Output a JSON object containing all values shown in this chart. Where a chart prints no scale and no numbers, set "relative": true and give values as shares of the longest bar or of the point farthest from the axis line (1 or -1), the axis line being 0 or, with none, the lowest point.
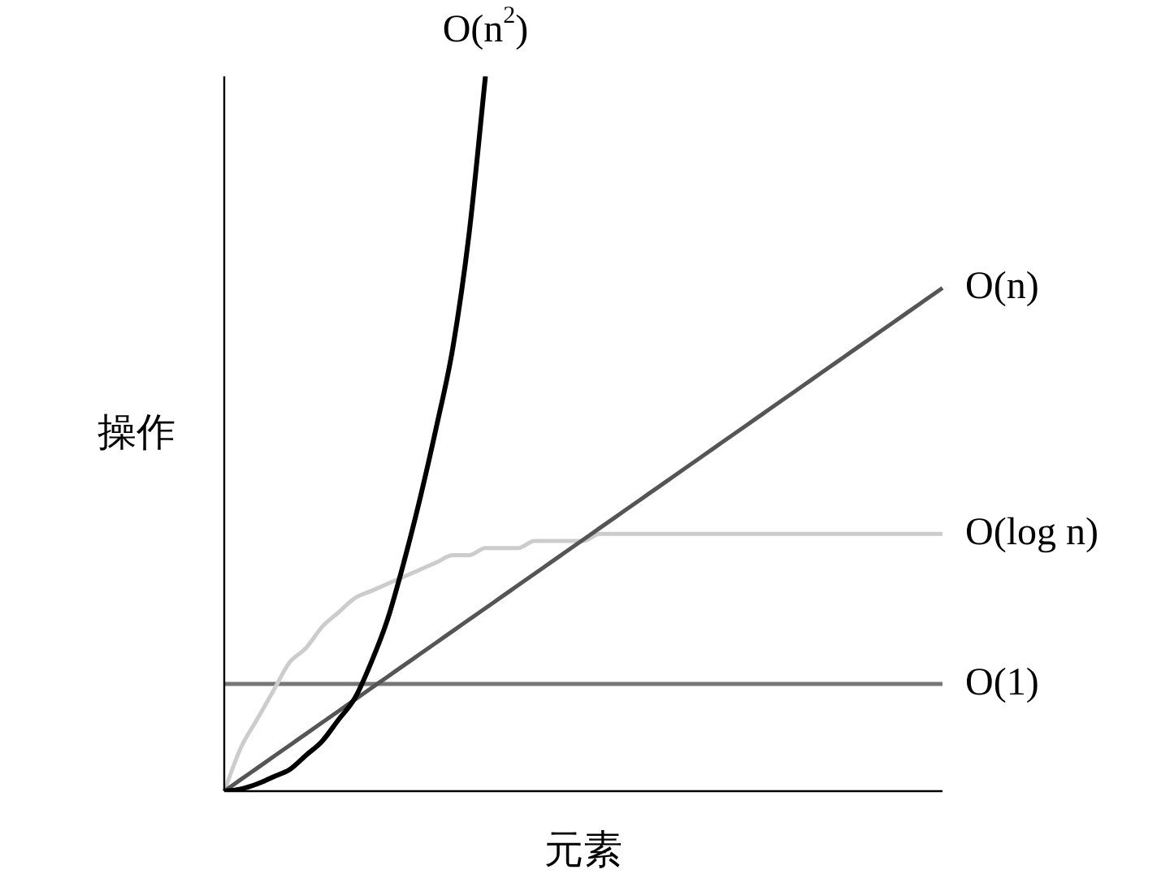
{
  "chart_data": {
    "type": "line",
    "relative": true,
    "xlabel": "元素",
    "ylabel": "操作",
    "legend": false,
    "grid": false,
    "marker": "none",
    "line_style": "solid",
    "categories": [
      null,
      null,
      null,
      null,
      null,
      null,
      null,
      null,
      null,
      null,
      null,
      null,
      null,
      null,
      null,
      null,
      null,
      null,
      null,
      null,
      null,
      null,
      null,
      null,
      null,
      null,
      null,
      null,
      null,
      null,
      null,
      null,
      null,
      null,
      null,
      null,
      null,
      null,
      null,
      null,
      null,
      null,
      null,
      null,
      null
    ],
    "series": [
      {
        "name": "O(n$^{2}$)",
        "color": "#000000",
        "values": [
          0,
          0.003,
          0.01,
          0.02,
          0.03,
          0.05,
          0.07,
          0.1,
          0.13,
          0.18,
          0.24,
          0.32,
          0.41,
          0.51,
          0.62,
          0.78,
          1,
          null,
          null,
          null,
          null,
          null,
          null,
          null,
          null,
          null,
          null,
          null,
          null,
          null,
          null,
          null,
          null,
          null,
          null,
          null,
          null,
          null,
          null,
          null,
          null,
          null,
          null,
          null,
          null
        ]
      },
      {
        "name": "O(n)",
        "color": "#555555",
        "values": [
          0,
          0.016,
          0.032,
          0.048,
          0.064,
          0.08,
          0.096,
          0.112,
          0.128,
          0.144,
          0.16,
          0.176,
          0.192,
          0.208,
          0.224,
          0.24,
          0.256,
          0.272,
          0.288,
          0.304,
          0.32,
          0.336,
          0.352,
          0.368,
          0.384,
          0.4,
          0.416,
          0.432,
          0.448,
          0.464,
          0.48,
          0.496,
          0.512,
          0.528,
          0.544,
          0.56,
          0.576,
          0.592,
          0.608,
          0.624,
          0.64,
          0.656,
          0.672,
          0.688,
          0.704
        ]
      },
      {
        "name": "O(log n)",
        "color": "#cccccc",
        "values": [
          0,
          0.06,
          0.1,
          0.14,
          0.18,
          0.2,
          0.23,
          0.25,
          0.27,
          0.28,
          0.29,
          0.3,
          0.31,
          0.32,
          0.33,
          0.33,
          0.34,
          0.34,
          0.34,
          0.35,
          0.35,
          0.35,
          0.35,
          0.36,
          0.36,
          0.36,
          0.36,
          0.36,
          0.36,
          0.36,
          0.36,
          0.36,
          0.36,
          0.36,
          0.36,
          0.36,
          0.36,
          0.36,
          0.36,
          0.36,
          0.36,
          0.36,
          0.36,
          0.36,
          0.36
        ]
      },
      {
        "name": "O(1)",
        "color": "#777777",
        "values": [
          0.15,
          0.15,
          0.15,
          0.15,
          0.15,
          0.15,
          0.15,
          0.15,
          0.15,
          0.15,
          0.15,
          0.15,
          0.15,
          0.15,
          0.15,
          0.15,
          0.15,
          0.15,
          0.15,
          0.15,
          0.15,
          0.15,
          0.15,
          0.15,
          0.15,
          0.15,
          0.15,
          0.15,
          0.15,
          0.15,
          0.15,
          0.15,
          0.15,
          0.15,
          0.15,
          0.15,
          0.15,
          0.15,
          0.15,
          0.15,
          0.15,
          0.15,
          0.15,
          0.15,
          0.15
        ]
      }
    ]
  }
}
